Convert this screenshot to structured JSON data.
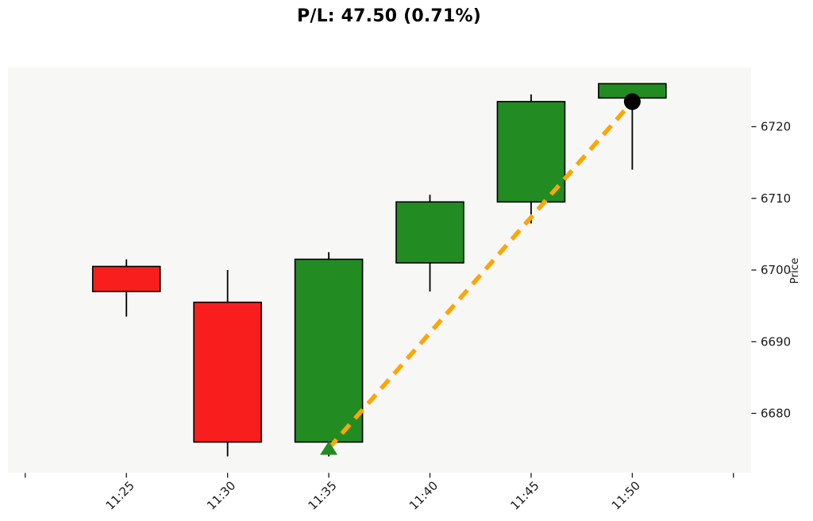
{
  "title": "P/L: 47.50 (0.71%)",
  "chart_data": {
    "type": "candlestick",
    "title": "P/L: 47.50 (0.71%)",
    "xlabel": "",
    "ylabel": "Price",
    "x_ticklabels": [
      "",
      "11:25",
      "11:30",
      "11:35",
      "11:40",
      "11:45",
      "11:50",
      ""
    ],
    "y_ticks": [
      6680,
      6690,
      6700,
      6710,
      6720
    ],
    "ylim": [
      6671.5,
      6728.5
    ],
    "grid": false,
    "legend": "none",
    "candles": [
      {
        "time": "11:25",
        "open": 6700.5,
        "high": 6701.5,
        "low": 6693.5,
        "close": 6697.0,
        "direction": "down"
      },
      {
        "time": "11:30",
        "open": 6695.5,
        "high": 6700.0,
        "low": 6674.0,
        "close": 6676.0,
        "direction": "down"
      },
      {
        "time": "11:35",
        "open": 6676.0,
        "high": 6702.5,
        "low": 6674.0,
        "close": 6701.5,
        "direction": "up"
      },
      {
        "time": "11:40",
        "open": 6701.0,
        "high": 6710.5,
        "low": 6697.0,
        "close": 6709.5,
        "direction": "up"
      },
      {
        "time": "11:45",
        "open": 6709.5,
        "high": 6724.5,
        "low": 6706.5,
        "close": 6723.5,
        "direction": "up"
      },
      {
        "time": "11:50",
        "open": 6724.0,
        "high": 6726.0,
        "low": 6714.0,
        "close": 6726.0,
        "direction": "up"
      }
    ],
    "trade": {
      "pl_points": "47.50",
      "pl_percent": "0.71%",
      "entry": {
        "time": "11:35",
        "price": 6676.0,
        "marker": "triangle-up"
      },
      "exit": {
        "time": "11:50",
        "price": 6723.5,
        "marker": "circle"
      },
      "line_style": "dashed"
    },
    "colors": {
      "up": "#228B22",
      "down": "#F91E1E",
      "wick": "#000000",
      "body_edge": "#000000",
      "trade_line": "#FFA500",
      "entry_marker": "#228B22",
      "exit_marker": "#000000",
      "plot_bg": "#f7f7f5",
      "tick_text": "#1a1a1a"
    }
  }
}
